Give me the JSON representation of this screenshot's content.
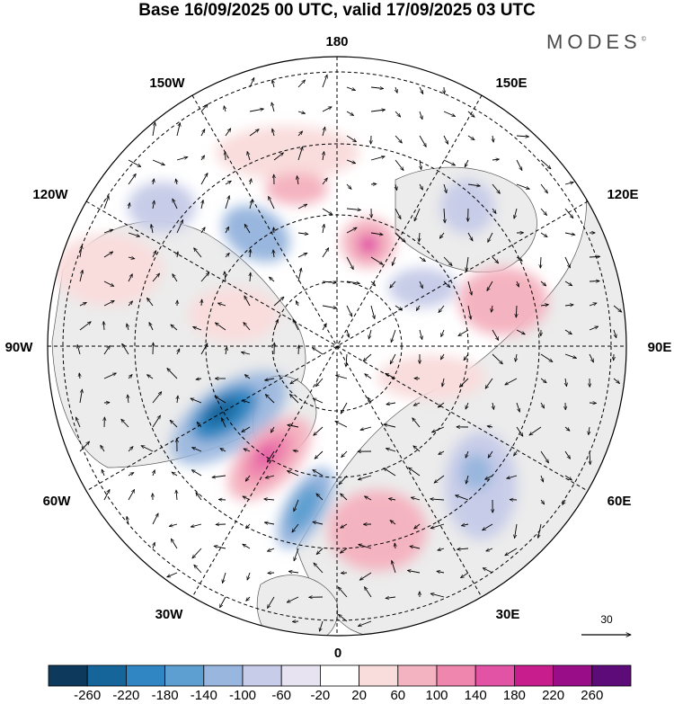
{
  "title": "Base 16/09/2025 00 UTC, valid 17/09/2025 03 UTC",
  "brand": "MODES",
  "brand_mark": "©",
  "longitude_labels": {
    "deg180": "180",
    "deg150w": "150W",
    "deg150e": "150E",
    "deg120w": "120W",
    "deg120e": "120E",
    "deg90w": "90W",
    "deg90e": "90E",
    "deg60w": "60W",
    "deg60e": "60E",
    "deg30w": "30W",
    "deg30e": "30E",
    "deg0": "0"
  },
  "reference_vector": {
    "label": "30"
  },
  "colorbar": {
    "labels": [
      "-260",
      "-220",
      "-180",
      "-140",
      "-100",
      "-60",
      "-20",
      "20",
      "60",
      "100",
      "140",
      "180",
      "220",
      "260"
    ],
    "colors": [
      "#0d3a5c",
      "#15649a",
      "#2f86c2",
      "#5c9fd0",
      "#98b6de",
      "#c7cce8",
      "#e7e3f1",
      "#ffffff",
      "#f9dcdc",
      "#f4b3c0",
      "#ef86ad",
      "#e253a5",
      "#c81d8c",
      "#9a0d88",
      "#5e0b7a"
    ]
  }
}
